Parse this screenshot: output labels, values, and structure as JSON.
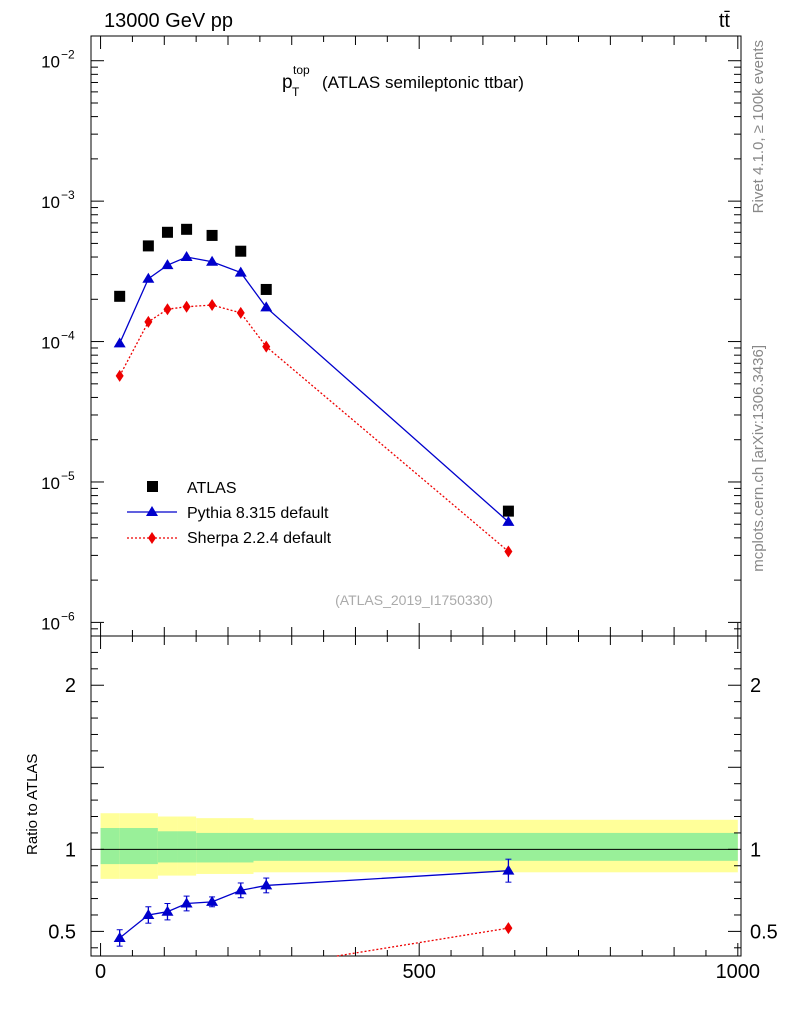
{
  "chart_data": {
    "type": "line",
    "header": {
      "energy_label": "13000 GeV pp",
      "process_label": "tt̄"
    },
    "title": {
      "main": "p",
      "sub": "T",
      "sup": "top",
      "rest": "(ATLAS semileptonic ttbar)"
    },
    "analysis_id": "(ATLAS_2019_I1750330)",
    "side_text": {
      "rivet": "Rivet 4.1.0, ≥ 100k events",
      "source": "mcplots.cern.ch [arXiv:1306.3436]"
    },
    "main_panel": {
      "yscale": "log",
      "ylim": [
        8e-07,
        0.015
      ],
      "y_tick_labels": [
        {
          "base": "10",
          "exp": "−2",
          "value": 0.01
        },
        {
          "base": "10",
          "exp": "−3",
          "value": 0.001
        },
        {
          "base": "10",
          "exp": "−4",
          "value": 0.0001
        },
        {
          "base": "10",
          "exp": "−5",
          "value": 1e-05
        },
        {
          "base": "10",
          "exp": "−6",
          "value": 1e-06
        }
      ]
    },
    "ratio_panel": {
      "ylabel": "Ratio to ATLAS",
      "ylim": [
        0.35,
        2.3
      ],
      "y_tick_labels": [
        {
          "label": "2",
          "value": 2
        },
        {
          "label": "1",
          "value": 1
        },
        {
          "label": "0.5",
          "value": 0.5
        }
      ],
      "band_x": [
        0,
        30,
        90,
        120,
        150,
        200,
        240,
        280,
        1000
      ],
      "band_yellow_lo": [
        0.82,
        0.82,
        0.84,
        0.84,
        0.85,
        0.85,
        0.86,
        0.86
      ],
      "band_yellow_hi": [
        1.22,
        1.22,
        1.2,
        1.2,
        1.19,
        1.19,
        1.18,
        1.18
      ],
      "band_green_lo": [
        0.91,
        0.91,
        0.92,
        0.92,
        0.92,
        0.92,
        0.93,
        0.93
      ],
      "band_green_hi": [
        1.13,
        1.13,
        1.11,
        1.11,
        1.1,
        1.1,
        1.1,
        1.1
      ]
    },
    "xlim": [
      -15,
      1005
    ],
    "x_tick_labels": [
      {
        "label": "0",
        "value": 0
      },
      {
        "label": "500",
        "value": 500
      },
      {
        "label": "1000",
        "value": 1000
      }
    ],
    "x": [
      30,
      75,
      105,
      135,
      175,
      220,
      260,
      640
    ],
    "series": [
      {
        "name": "ATLAS",
        "style": "data",
        "color": "#000000",
        "values": [
          0.00021,
          0.00048,
          0.0006,
          0.00063,
          0.00057,
          0.00044,
          0.000235,
          6.2e-06
        ]
      },
      {
        "name": "Pythia 8.315 default",
        "style": "solid-triangle",
        "color": "#0000cc",
        "values": [
          9.7e-05,
          0.00028,
          0.00035,
          0.0004,
          0.00037,
          0.00031,
          0.000175,
          5.2e-06
        ],
        "ratio": [
          0.46,
          0.6,
          0.62,
          0.67,
          0.68,
          0.75,
          0.78,
          0.87
        ],
        "ratio_err": [
          0.05,
          0.05,
          0.05,
          0.045,
          0.03,
          0.045,
          0.045,
          0.07
        ]
      },
      {
        "name": "Sherpa 2.2.4 default",
        "style": "dotted-diamond",
        "color": "#ee0000",
        "values": [
          5.7e-05,
          0.000138,
          0.00017,
          0.000177,
          0.000182,
          0.00016,
          9.2e-05,
          3.2e-06
        ],
        "ratio": [
          null,
          null,
          null,
          null,
          null,
          null,
          null,
          0.52
        ],
        "ratio_err": [
          null,
          null,
          null,
          null,
          null,
          null,
          null,
          0.03
        ]
      }
    ]
  }
}
